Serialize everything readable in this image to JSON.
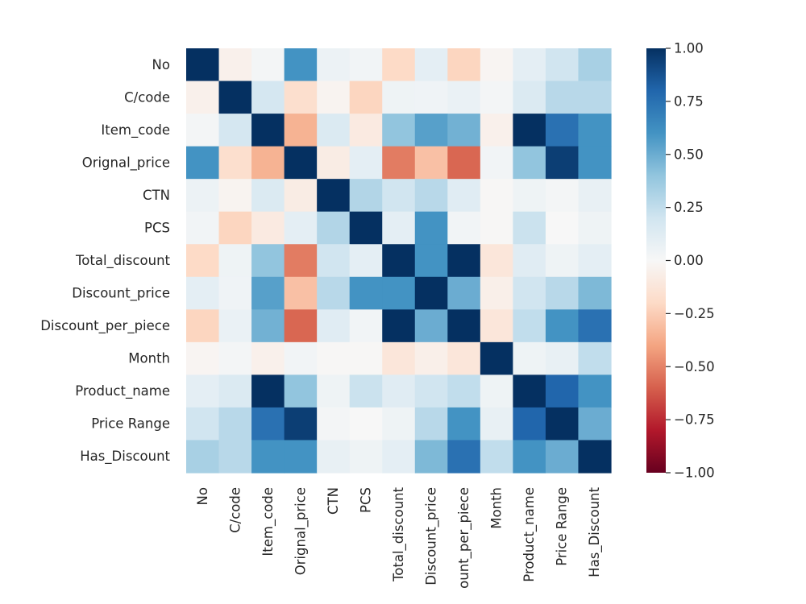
{
  "chart_data": {
    "type": "heatmap",
    "title": "",
    "labels": [
      "No",
      "C/code",
      "Item_code",
      "Orignal_price",
      "CTN",
      "PCS",
      "Total_discount",
      "Discount_price",
      "Discount_per_piece",
      "Month",
      "Product_name",
      "Price Range",
      "Has_Discount"
    ],
    "x_tick_labels_visible": [
      "No",
      "C/code",
      "Item_code",
      "Orignal_price",
      "CTN",
      "PCS",
      "Total_discount",
      "Discount_price",
      "ount_per_piece",
      "Month",
      "Product_name",
      "Price Range",
      "Has_Discount"
    ],
    "matrix": [
      [
        1.0,
        -0.05,
        0.02,
        0.6,
        0.06,
        0.03,
        -0.2,
        0.1,
        -0.22,
        -0.02,
        0.1,
        0.2,
        0.33
      ],
      [
        -0.05,
        1.0,
        0.18,
        -0.17,
        -0.03,
        -0.22,
        0.05,
        0.04,
        0.07,
        0.02,
        0.15,
        0.28,
        0.28
      ],
      [
        0.02,
        0.18,
        1.0,
        -0.35,
        0.15,
        -0.09,
        0.4,
        0.55,
        0.48,
        -0.05,
        1.0,
        0.75,
        0.6
      ],
      [
        0.6,
        -0.17,
        -0.35,
        1.0,
        -0.08,
        0.1,
        -0.52,
        -0.3,
        -0.58,
        0.03,
        0.4,
        0.95,
        0.6
      ],
      [
        0.06,
        -0.03,
        0.15,
        -0.08,
        1.0,
        0.3,
        0.2,
        0.28,
        0.12,
        -0.01,
        0.05,
        0.02,
        0.08
      ],
      [
        0.03,
        -0.22,
        -0.09,
        0.1,
        0.3,
        1.0,
        0.1,
        0.6,
        0.03,
        -0.01,
        0.22,
        0.0,
        0.05
      ],
      [
        -0.2,
        0.05,
        0.4,
        -0.52,
        0.2,
        0.1,
        1.0,
        0.6,
        1.0,
        -0.12,
        0.12,
        0.05,
        0.1
      ],
      [
        0.1,
        0.04,
        0.55,
        -0.3,
        0.28,
        0.6,
        0.6,
        1.0,
        0.5,
        -0.06,
        0.2,
        0.28,
        0.45
      ],
      [
        -0.22,
        0.07,
        0.48,
        -0.58,
        0.12,
        0.03,
        1.0,
        0.5,
        1.0,
        -0.12,
        0.25,
        0.6,
        0.75
      ],
      [
        -0.02,
        0.02,
        -0.05,
        0.03,
        -0.01,
        -0.01,
        -0.12,
        -0.06,
        -0.12,
        1.0,
        0.05,
        0.08,
        0.25
      ],
      [
        0.1,
        0.15,
        1.0,
        0.4,
        0.05,
        0.22,
        0.12,
        0.2,
        0.25,
        0.05,
        1.0,
        0.8,
        0.6
      ],
      [
        0.2,
        0.28,
        0.75,
        0.95,
        0.02,
        0.0,
        0.05,
        0.28,
        0.6,
        0.08,
        0.8,
        1.0,
        0.5
      ],
      [
        0.33,
        0.28,
        0.6,
        0.6,
        0.08,
        0.05,
        0.1,
        0.45,
        0.75,
        0.25,
        0.6,
        0.5,
        1.0
      ]
    ],
    "vmin": -1.0,
    "vmax": 1.0,
    "colormap": "RdBu",
    "colorbar_ticks": [
      "1.00",
      "0.75",
      "0.50",
      "0.25",
      "0.00",
      "−0.25",
      "−0.50",
      "−0.75",
      "−1.00"
    ],
    "colorbar_tick_values": [
      1.0,
      0.75,
      0.5,
      0.25,
      0.0,
      -0.25,
      -0.5,
      -0.75,
      -1.0
    ],
    "colors": {
      "rdbu": [
        "#67001f",
        "#b2182b",
        "#d6604d",
        "#f4a582",
        "#fddbc7",
        "#f7f7f7",
        "#d1e5f0",
        "#92c5de",
        "#4393c3",
        "#2166ac",
        "#053061"
      ],
      "text": "#262626",
      "tick": "#262626"
    }
  }
}
